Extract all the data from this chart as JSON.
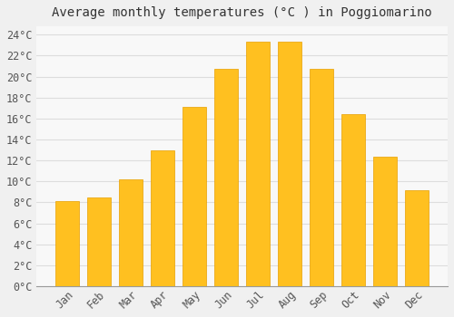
{
  "title": "Average monthly temperatures (°C ) in Poggiomarino",
  "months": [
    "Jan",
    "Feb",
    "Mar",
    "Apr",
    "May",
    "Jun",
    "Jul",
    "Aug",
    "Sep",
    "Oct",
    "Nov",
    "Dec"
  ],
  "values": [
    8.1,
    8.5,
    10.2,
    13.0,
    17.1,
    20.7,
    23.3,
    23.3,
    20.7,
    16.4,
    12.4,
    9.2
  ],
  "bar_color": "#FFC020",
  "bar_edge_color": "#E8A000",
  "ylim_max": 24,
  "ytick_step": 2,
  "background_color": "#F0F0F0",
  "plot_bg_color": "#F8F8F8",
  "grid_color": "#DDDDDD",
  "title_fontsize": 10,
  "tick_fontsize": 8.5,
  "font_family": "monospace"
}
